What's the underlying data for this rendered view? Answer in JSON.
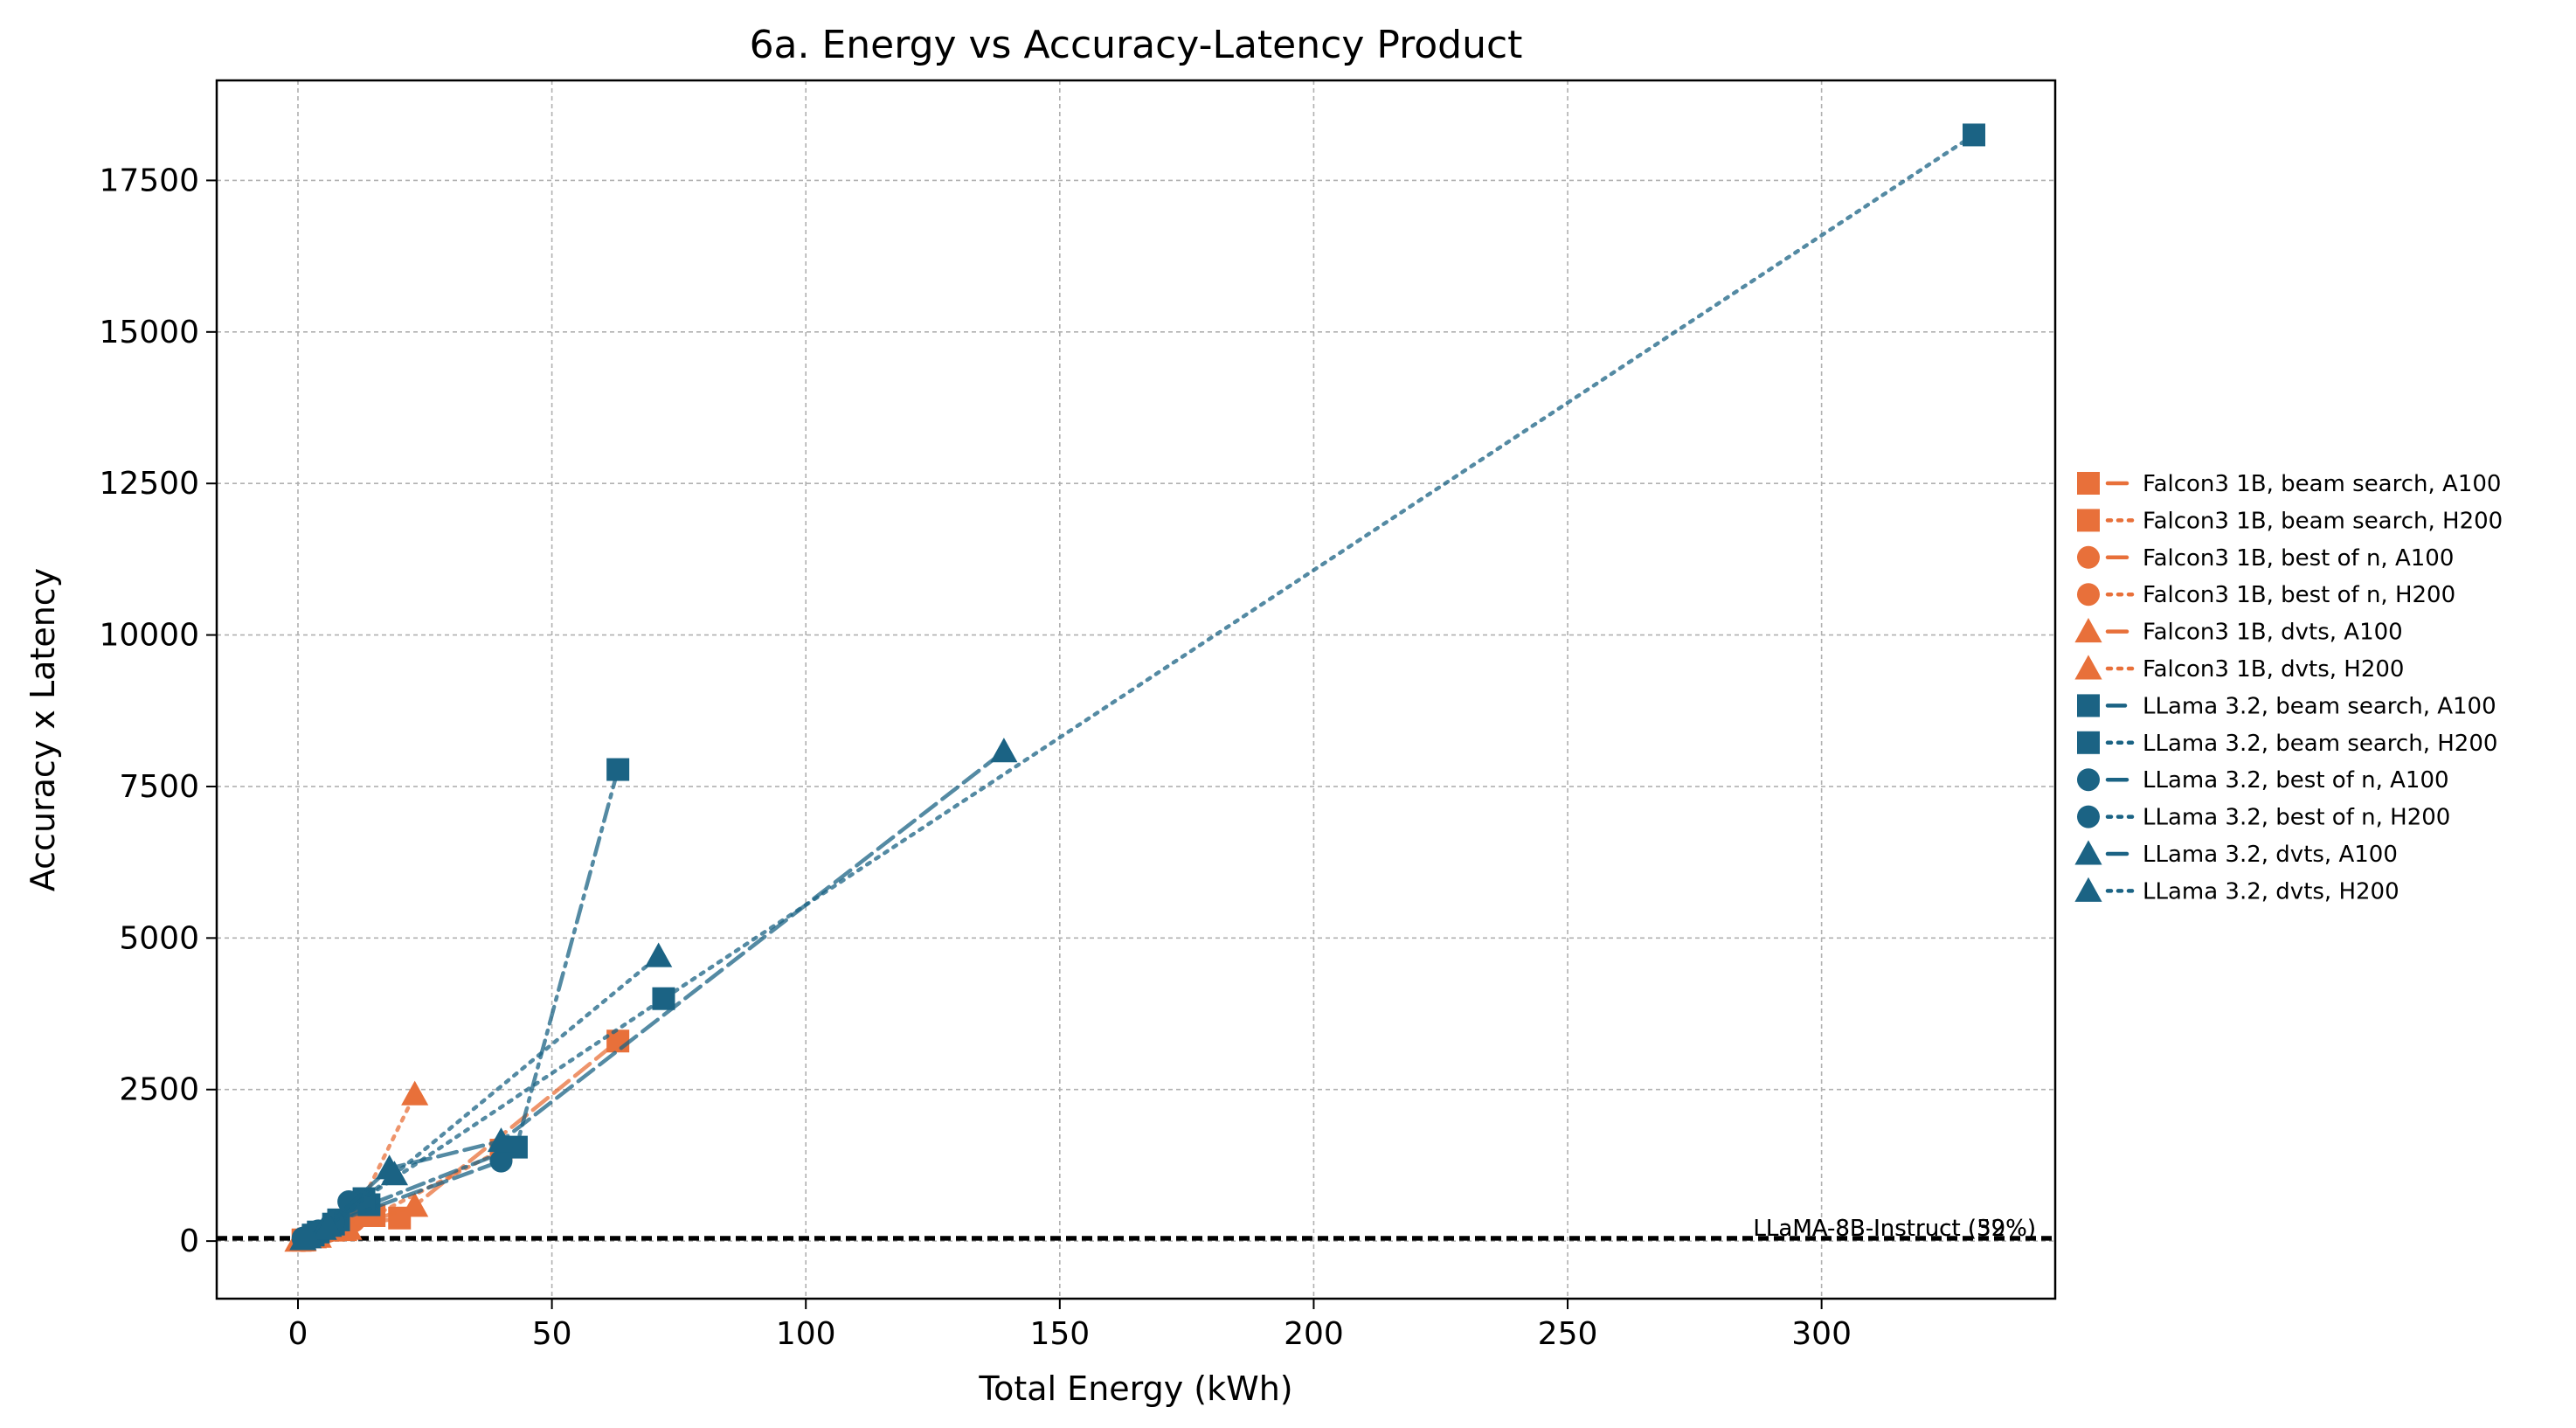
{
  "chart_data": {
    "type": "line",
    "title": "6a. Energy vs Accuracy-Latency Product",
    "xlabel": "Total Energy (kWh)",
    "ylabel": "Accuracy x Latency",
    "xlim": [
      -16,
      346
    ],
    "ylim": [
      -950,
      19150
    ],
    "xticks": [
      0,
      50,
      100,
      150,
      200,
      250,
      300
    ],
    "yticks": [
      0,
      2500,
      5000,
      7500,
      10000,
      12500,
      15000,
      17500
    ],
    "grid": true,
    "legend_position": "right",
    "colors": {
      "falcon": "#E8703A",
      "llama": "#1B6384"
    },
    "reference_lines": [
      {
        "y": 32,
        "label": "LLaMA-8B-Instruct (32%)"
      },
      {
        "y": 59,
        "label": "LLaMA-8B-Instruct (59%)"
      }
    ],
    "series": [
      {
        "name": "Falcon3 1B, beam search, A100",
        "color": "#E8703A",
        "marker": "square",
        "line": "dashed",
        "x": [
          1,
          4,
          8,
          20,
          63
        ],
        "y": [
          20,
          100,
          220,
          380,
          3300
        ]
      },
      {
        "name": "Falcon3 1B, beam search, H200",
        "color": "#E8703A",
        "marker": "square",
        "line": "dotted",
        "x": [
          1,
          3,
          7,
          15,
          40
        ],
        "y": [
          15,
          80,
          180,
          420,
          1500
        ]
      },
      {
        "name": "Falcon3 1B, best of n, A100",
        "color": "#E8703A",
        "marker": "circle",
        "line": "dashed",
        "x": [
          1,
          3,
          6,
          11
        ],
        "y": [
          10,
          60,
          160,
          330
        ]
      },
      {
        "name": "Falcon3 1B, best of n, H200",
        "color": "#E8703A",
        "marker": "circle",
        "line": "dotted",
        "x": [
          1,
          2,
          5,
          9
        ],
        "y": [
          8,
          50,
          130,
          260
        ]
      },
      {
        "name": "Falcon3 1B, dvts, A100",
        "color": "#E8703A",
        "marker": "triangle",
        "line": "dashed",
        "x": [
          0,
          3,
          9,
          23
        ],
        "y": [
          5,
          60,
          180,
          580
        ]
      },
      {
        "name": "Falcon3 1B, dvts, H200",
        "color": "#E8703A",
        "marker": "triangle",
        "line": "dotted",
        "x": [
          1,
          4,
          10,
          23
        ],
        "y": [
          10,
          70,
          200,
          2420
        ]
      },
      {
        "name": "LLama 3.2, beam search, A100",
        "color": "#1B6384",
        "marker": "square",
        "line": "dashdot",
        "x": [
          3,
          7,
          14,
          43,
          63
        ],
        "y": [
          100,
          280,
          600,
          1550,
          7780
        ]
      },
      {
        "name": "LLama 3.2, beam search, H200",
        "color": "#1B6384",
        "marker": "square",
        "line": "dotted",
        "x": [
          4,
          8,
          13,
          72,
          330
        ],
        "y": [
          150,
          350,
          700,
          4000,
          18250
        ]
      },
      {
        "name": "LLama 3.2, best of n, A100",
        "color": "#1B6384",
        "marker": "circle",
        "line": "dashed",
        "x": [
          1,
          4,
          7,
          40
        ],
        "y": [
          50,
          170,
          310,
          1320
        ]
      },
      {
        "name": "LLama 3.2, best of n, H200",
        "color": "#1B6384",
        "marker": "circle",
        "line": "dotted",
        "x": [
          1,
          3,
          10
        ],
        "y": [
          40,
          130,
          650
        ]
      },
      {
        "name": "LLama 3.2, dvts, A100",
        "color": "#1B6384",
        "marker": "triangle",
        "line": "dashed",
        "x": [
          1,
          5,
          18,
          40,
          139
        ],
        "y": [
          30,
          200,
          1200,
          1650,
          8080
        ]
      },
      {
        "name": "LLama 3.2, dvts, H200",
        "color": "#1B6384",
        "marker": "triangle",
        "line": "dotted",
        "x": [
          2,
          6,
          19,
          71
        ],
        "y": [
          60,
          250,
          1100,
          4700
        ]
      }
    ]
  }
}
